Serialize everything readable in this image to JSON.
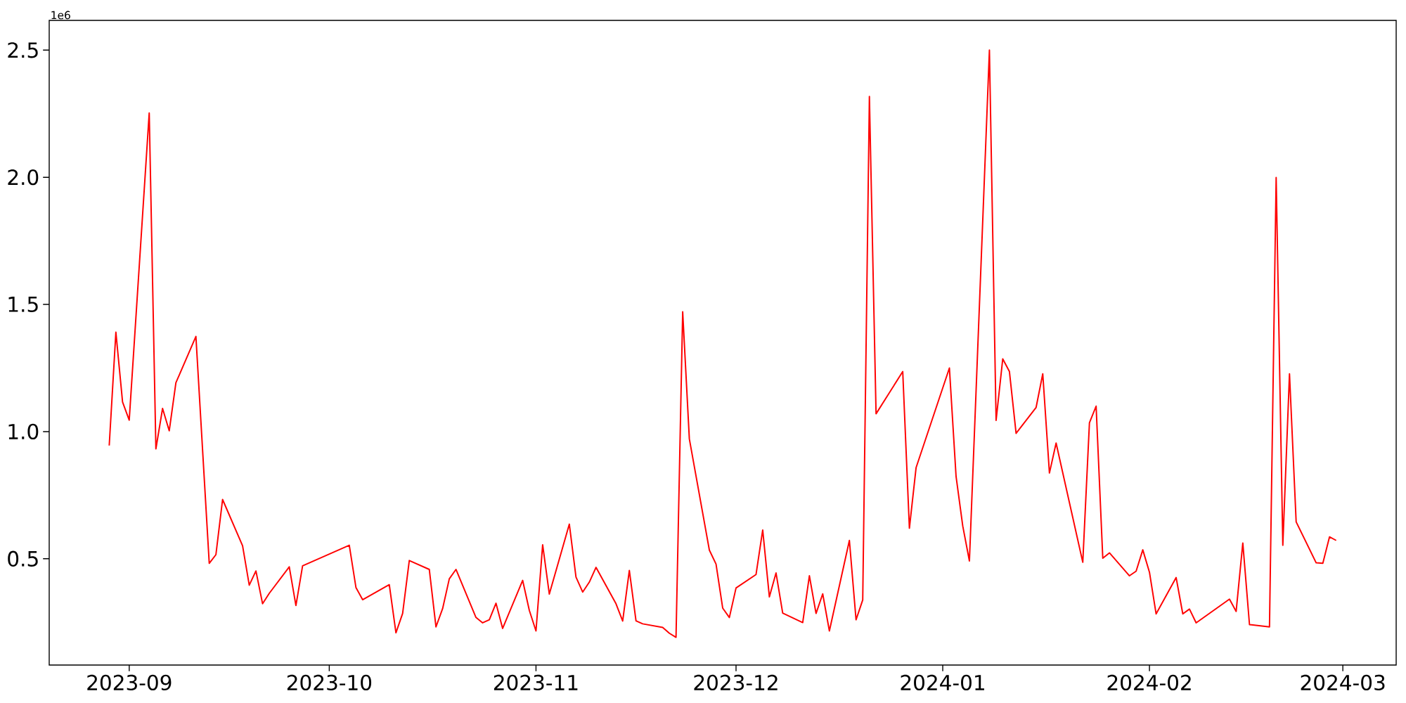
{
  "chart_data": {
    "type": "line",
    "color": "#ff0000",
    "x": [
      "2023-08-29",
      "2023-08-30",
      "2023-08-31",
      "2023-09-01",
      "2023-09-04",
      "2023-09-05",
      "2023-09-06",
      "2023-09-07",
      "2023-09-08",
      "2023-09-11",
      "2023-09-13",
      "2023-09-14",
      "2023-09-15",
      "2023-09-18",
      "2023-09-19",
      "2023-09-20",
      "2023-09-21",
      "2023-09-22",
      "2023-09-25",
      "2023-09-26",
      "2023-09-27",
      "2023-10-04",
      "2023-10-05",
      "2023-10-06",
      "2023-10-10",
      "2023-10-11",
      "2023-10-12",
      "2023-10-13",
      "2023-10-16",
      "2023-10-17",
      "2023-10-18",
      "2023-10-19",
      "2023-10-20",
      "2023-10-23",
      "2023-10-24",
      "2023-10-25",
      "2023-10-26",
      "2023-10-27",
      "2023-10-30",
      "2023-10-31",
      "2023-11-01",
      "2023-11-02",
      "2023-11-03",
      "2023-11-06",
      "2023-11-07",
      "2023-11-08",
      "2023-11-09",
      "2023-11-10",
      "2023-11-13",
      "2023-11-14",
      "2023-11-15",
      "2023-11-16",
      "2023-11-17",
      "2023-11-20",
      "2023-11-21",
      "2023-11-22",
      "2023-11-23",
      "2023-11-24",
      "2023-11-27",
      "2023-11-28",
      "2023-11-29",
      "2023-11-30",
      "2023-12-01",
      "2023-12-04",
      "2023-12-05",
      "2023-12-06",
      "2023-12-07",
      "2023-12-08",
      "2023-12-11",
      "2023-12-12",
      "2023-12-13",
      "2023-12-14",
      "2023-12-15",
      "2023-12-18",
      "2023-12-19",
      "2023-12-20",
      "2023-12-21",
      "2023-12-22",
      "2023-12-26",
      "2023-12-27",
      "2023-12-28",
      "2024-01-02",
      "2024-01-03",
      "2024-01-04",
      "2024-01-05",
      "2024-01-08",
      "2024-01-09",
      "2024-01-10",
      "2024-01-11",
      "2024-01-12",
      "2024-01-15",
      "2024-01-16",
      "2024-01-17",
      "2024-01-18",
      "2024-01-22",
      "2024-01-23",
      "2024-01-24",
      "2024-01-25",
      "2024-01-26",
      "2024-01-29",
      "2024-01-30",
      "2024-01-31",
      "2024-02-01",
      "2024-02-02",
      "2024-02-05",
      "2024-02-06",
      "2024-02-07",
      "2024-02-08",
      "2024-02-13",
      "2024-02-14",
      "2024-02-15",
      "2024-02-16",
      "2024-02-19",
      "2024-02-20",
      "2024-02-21",
      "2024-02-22",
      "2024-02-23",
      "2024-02-26",
      "2024-02-27",
      "2024-02-28",
      "2024-02-29"
    ],
    "values": [
      0.945,
      1.391,
      1.116,
      1.045,
      2.253,
      0.932,
      1.091,
      1.003,
      1.192,
      1.374,
      0.482,
      0.516,
      0.733,
      0.551,
      0.396,
      0.452,
      0.323,
      0.364,
      0.468,
      0.316,
      0.472,
      0.553,
      0.387,
      0.339,
      0.398,
      0.209,
      0.285,
      0.493,
      0.458,
      0.232,
      0.304,
      0.421,
      0.458,
      0.269,
      0.248,
      0.26,
      0.325,
      0.226,
      0.415,
      0.297,
      0.216,
      0.555,
      0.361,
      0.636,
      0.428,
      0.369,
      0.408,
      0.466,
      0.323,
      0.255,
      0.454,
      0.256,
      0.244,
      0.23,
      0.207,
      0.191,
      1.471,
      0.971,
      0.534,
      0.479,
      0.306,
      0.269,
      0.385,
      0.438,
      0.613,
      0.35,
      0.444,
      0.286,
      0.249,
      0.433,
      0.285,
      0.362,
      0.216,
      0.572,
      0.26,
      0.338,
      2.318,
      1.07,
      1.236,
      0.62,
      0.858,
      1.25,
      0.823,
      0.629,
      0.491,
      2.5,
      1.044,
      1.286,
      1.236,
      0.993,
      1.095,
      1.227,
      0.837,
      0.955,
      0.486,
      1.035,
      1.1,
      0.502,
      0.523,
      0.433,
      0.451,
      0.535,
      0.447,
      0.283,
      0.426,
      0.283,
      0.302,
      0.248,
      0.341,
      0.293,
      0.562,
      0.241,
      0.232,
      1.999,
      0.553,
      1.227,
      0.645,
      0.484,
      0.482,
      0.586,
      0.572
    ],
    "xlim": [
      "2023-08-20",
      "2024-03-09"
    ],
    "ylim": [
      0.082,
      2.617
    ],
    "xticks": [
      "2023-09",
      "2023-10",
      "2023-11",
      "2023-12",
      "2024-01",
      "2024-02",
      "2024-03"
    ],
    "yticks": [
      0.5,
      {
        "value": 1,
        "label": "1.0"
      },
      1.5,
      {
        "value": 2,
        "label": "2.0"
      },
      2.5
    ],
    "annotations": [
      "1e6"
    ]
  }
}
